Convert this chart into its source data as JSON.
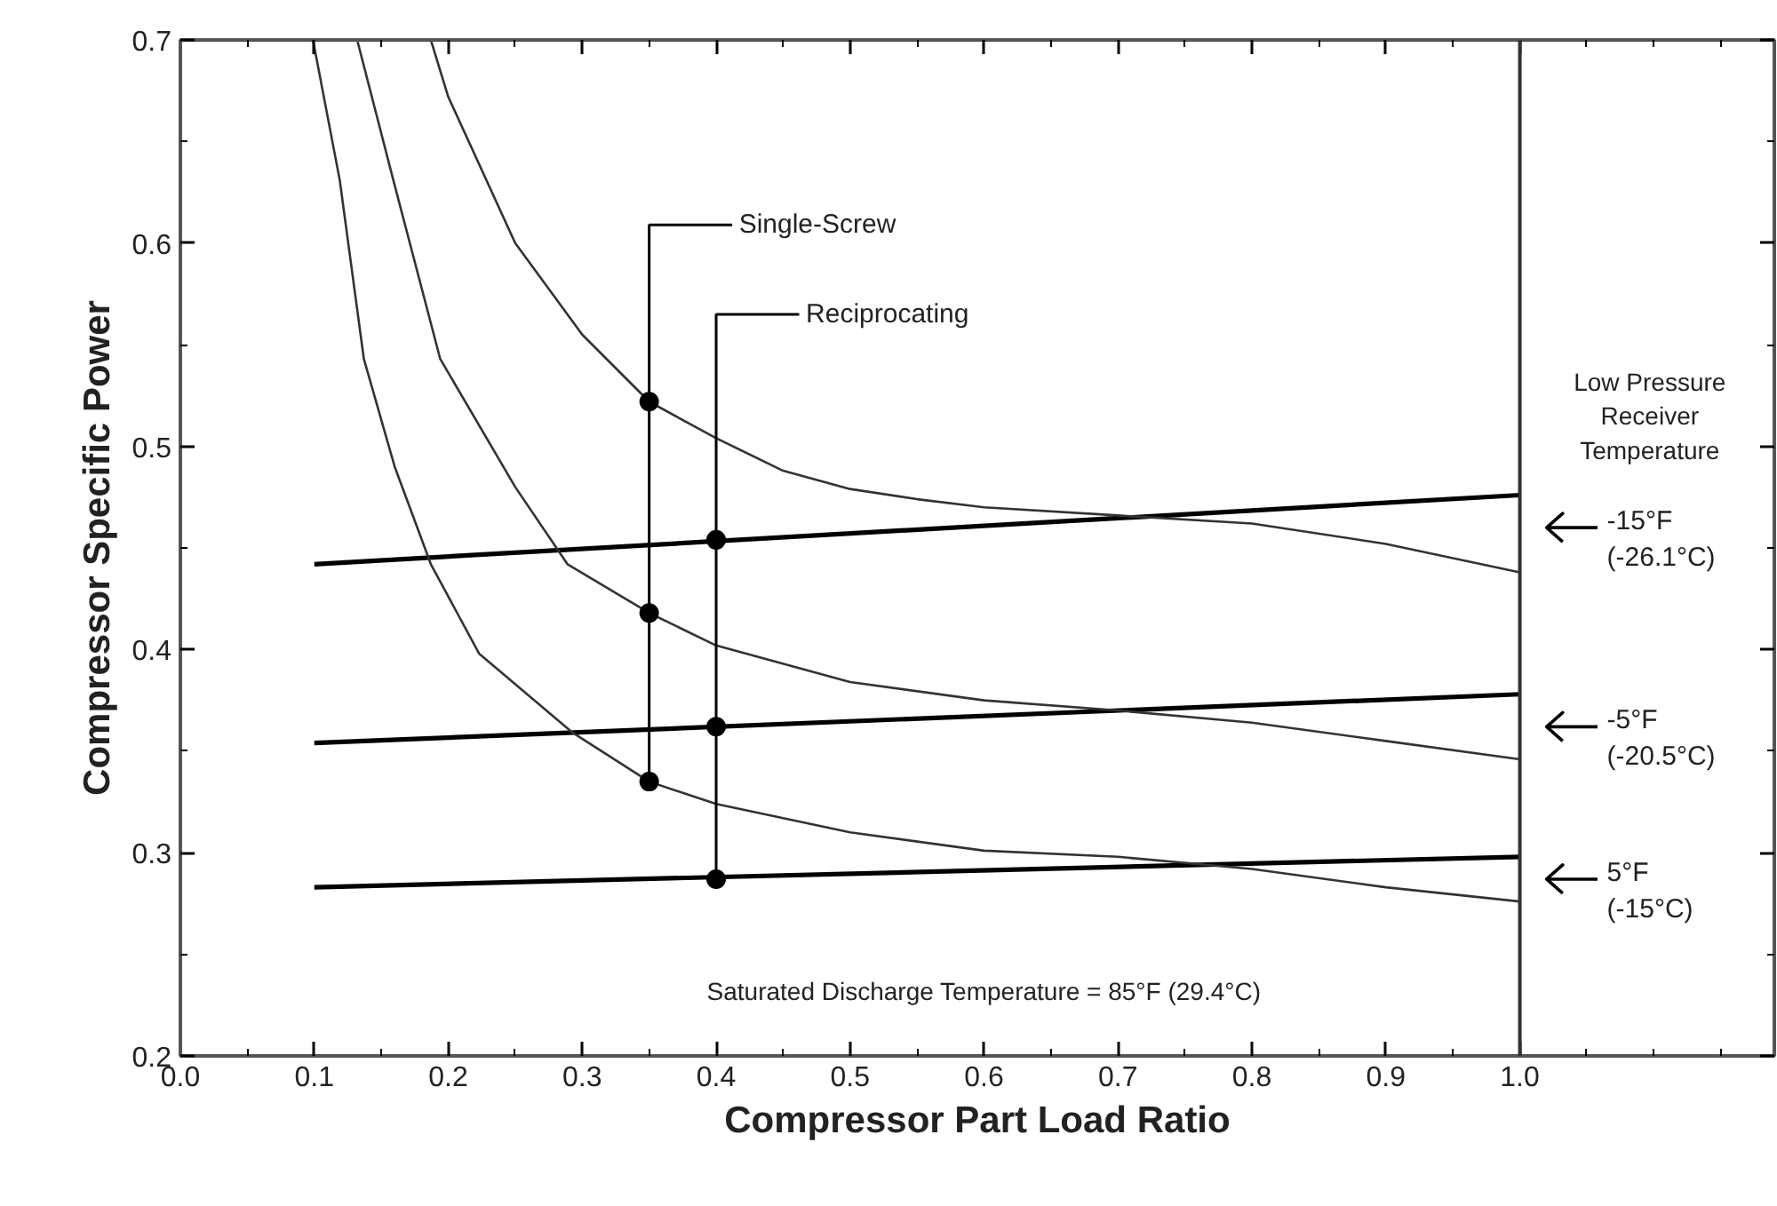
{
  "chart_data": {
    "type": "line",
    "xlabel": "Compressor Part Load Ratio",
    "ylabel": "Compressor Specific Power",
    "xlim": [
      0,
      1.19
    ],
    "ylim": [
      0.2,
      0.7
    ],
    "xticks": [
      {
        "value": 0,
        "label": "0.0"
      },
      0.1,
      0.2,
      0.3,
      0.4,
      0.5,
      0.6,
      0.7,
      0.8,
      0.9,
      {
        "value": 1,
        "label": "1.0"
      }
    ],
    "yticks": [
      0.2,
      0.3,
      0.4,
      0.5,
      0.6,
      0.7
    ],
    "grid": false,
    "series": [
      {
        "color": "#000000",
        "marker": "none",
        "x": [
          0.1,
          1.0
        ],
        "values": [
          0.442,
          0.476
        ]
      },
      {
        "color": "#000000",
        "marker": "none",
        "x": [
          0.1,
          1.0
        ],
        "values": [
          0.354,
          0.378
        ]
      },
      {
        "color": "#000000",
        "marker": "none",
        "x": [
          0.1,
          1.0
        ],
        "values": [
          0.283,
          0.298
        ]
      },
      {
        "color": "#333333",
        "marker": "none",
        "x": [
          0.187,
          0.2,
          0.25,
          0.3,
          0.35,
          0.4,
          0.45,
          0.5,
          0.55,
          0.6,
          0.7,
          0.8,
          0.9,
          1.0
        ],
        "values": [
          0.7,
          0.672,
          0.6,
          0.555,
          0.522,
          0.504,
          0.488,
          0.479,
          0.474,
          0.47,
          0.466,
          0.462,
          0.452,
          0.438
        ]
      },
      {
        "color": "#333333",
        "marker": "none",
        "x": [
          0.132,
          0.159,
          0.194,
          0.25,
          0.289,
          0.35,
          0.4,
          0.5,
          0.6,
          0.7,
          0.8,
          0.9,
          1.0
        ],
        "values": [
          0.7,
          0.631,
          0.543,
          0.48,
          0.442,
          0.418,
          0.402,
          0.384,
          0.375,
          0.37,
          0.364,
          0.355,
          0.346
        ]
      },
      {
        "color": "#333333",
        "marker": "none",
        "x": [
          0.099,
          0.119,
          0.137,
          0.16,
          0.187,
          0.223,
          0.293,
          0.35,
          0.4,
          0.5,
          0.6,
          0.7,
          0.8,
          0.9,
          1.0
        ],
        "values": [
          0.7,
          0.631,
          0.543,
          0.49,
          0.442,
          0.398,
          0.359,
          0.335,
          0.324,
          0.31,
          0.301,
          0.298,
          0.292,
          0.283,
          0.276
        ]
      },
      {
        "type": "scatter",
        "name": "Single-Screw",
        "marker": "circle",
        "color": "#000000",
        "x": [
          0.35,
          0.35,
          0.35
        ],
        "values": [
          0.522,
          0.418,
          0.335
        ]
      },
      {
        "type": "scatter",
        "name": "Reciprocating",
        "marker": "circle",
        "color": "#000000",
        "x": [
          0.4,
          0.4,
          0.4
        ],
        "values": [
          0.454,
          0.362,
          0.287
        ]
      }
    ],
    "ref_lines": [
      {
        "axis": "x",
        "value": 1.0,
        "color": "#333333"
      }
    ],
    "annotations": [
      "Low Pressure Receiver Temperature",
      "-15°F (-26.1°C)",
      "-5°F (-20.5°C)",
      "5°F (-15°C)",
      "Saturated Discharge Temperature = 85°F (29.4°C)"
    ]
  }
}
